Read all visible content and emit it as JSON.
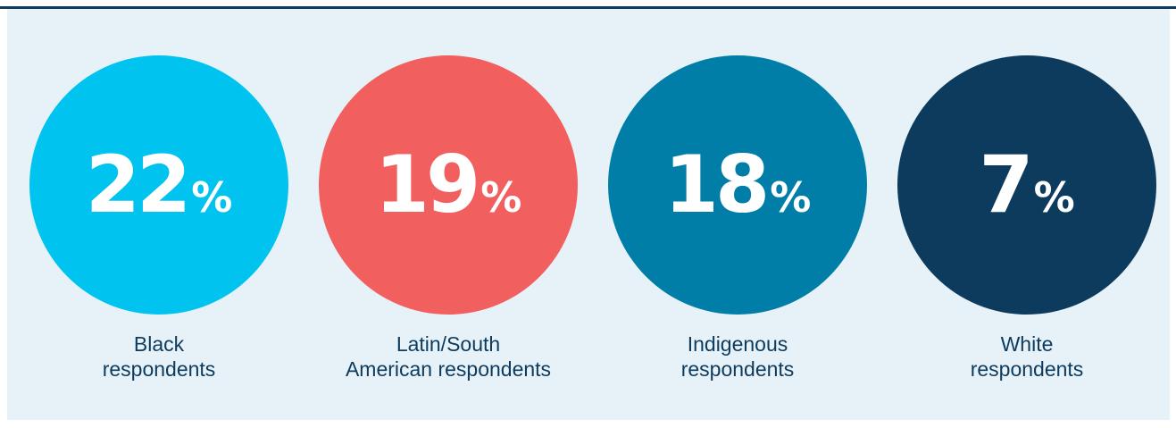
{
  "items": [
    {
      "value": 22,
      "unit": "%",
      "label_lines": [
        "Black",
        "respondents"
      ],
      "color": "#00c3ef"
    },
    {
      "value": 19,
      "unit": "%",
      "label_lines": [
        "Latin/South",
        "American respondents"
      ],
      "color": "#f15f5f"
    },
    {
      "value": 18,
      "unit": "%",
      "label_lines": [
        "Indigenous",
        "respondents"
      ],
      "color": "#007ea7"
    },
    {
      "value": 7,
      "unit": "%",
      "label_lines": [
        "White",
        "respondents"
      ],
      "color": "#0d3b5e"
    }
  ]
}
